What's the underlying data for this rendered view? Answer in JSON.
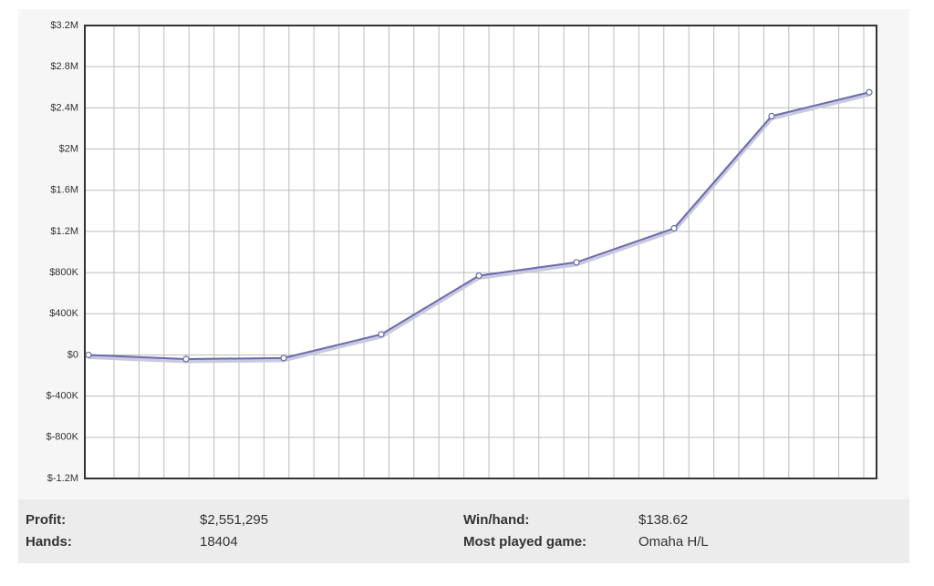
{
  "chart_data": {
    "type": "line",
    "categories": [
      null,
      null,
      null,
      null,
      null,
      null,
      null,
      null,
      null
    ],
    "values": [
      0,
      -40000,
      -30000,
      200000,
      770000,
      900000,
      1230000,
      2320000,
      2551295
    ],
    "color": "#6b6bab",
    "ylim": [
      -1200000,
      3200000
    ],
    "yticks": [
      {
        "value": -1200000,
        "label": "$-1.2M"
      },
      {
        "value": -800000,
        "label": "$-800K"
      },
      {
        "value": -400000,
        "label": "$-400K"
      },
      {
        "value": 0,
        "label": "$0"
      },
      {
        "value": 400000,
        "label": "$400K"
      },
      {
        "value": 800000,
        "label": "$800K"
      },
      {
        "value": 1200000,
        "label": "$1.2M"
      },
      {
        "value": 1600000,
        "label": "$1.6M"
      },
      {
        "value": 2000000,
        "label": "$2M"
      },
      {
        "value": 2400000,
        "label": "$2.4M"
      },
      {
        "value": 2800000,
        "label": "$2.8M"
      },
      {
        "value": 3200000,
        "label": "$3.2M"
      }
    ],
    "grid": true
  },
  "stats": {
    "rows": [
      [
        "Profit:",
        "$2,551,295",
        "Win/hand:",
        "$138.62"
      ],
      [
        "Hands:",
        "18404",
        "Most played game:",
        "Omaha H/L"
      ]
    ]
  }
}
